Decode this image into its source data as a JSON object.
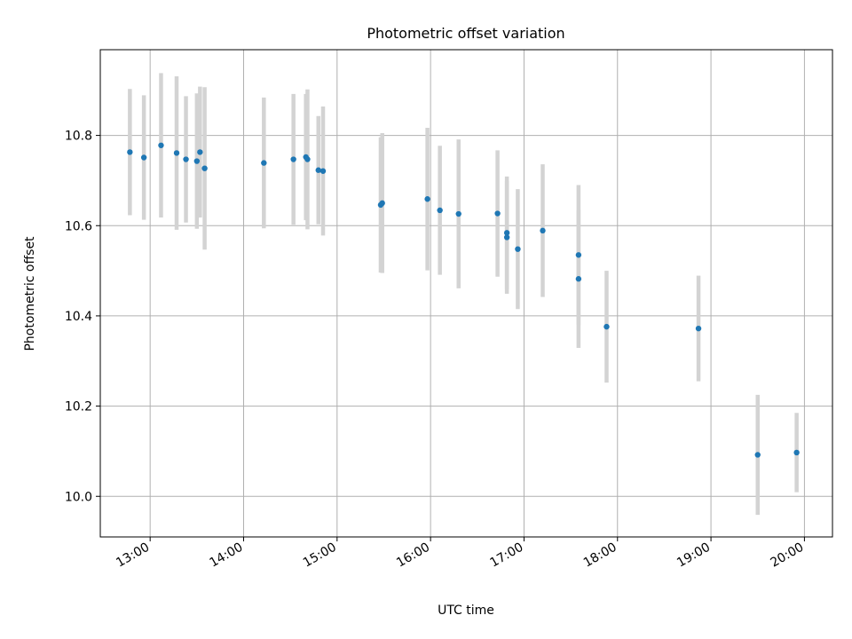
{
  "chart_data": {
    "type": "scatter",
    "title": "Photometric offset variation",
    "xlabel": "UTC time",
    "ylabel": "Photometric offset",
    "xlim": [
      "12:28",
      "20:18"
    ],
    "ylim": [
      9.91,
      10.99
    ],
    "x_ticks": [
      "13:00",
      "14:00",
      "15:00",
      "16:00",
      "17:00",
      "18:00",
      "19:00",
      "20:00"
    ],
    "y_ticks": [
      "10.0",
      "10.2",
      "10.4",
      "10.6",
      "10.8"
    ],
    "grid": true,
    "colors": {
      "point": "#1f77b4",
      "errorbar": "#d3d3d3",
      "grid": "#b0b0b0"
    },
    "series": [
      {
        "points": [
          {
            "x": "12:47",
            "y": 10.763,
            "yerr": 0.14
          },
          {
            "x": "12:56",
            "y": 10.751,
            "yerr": 0.138
          },
          {
            "x": "13:07",
            "y": 10.778,
            "yerr": 0.16
          },
          {
            "x": "13:17",
            "y": 10.761,
            "yerr": 0.17
          },
          {
            "x": "13:23",
            "y": 10.747,
            "yerr": 0.14
          },
          {
            "x": "13:30",
            "y": 10.743,
            "yerr": 0.15
          },
          {
            "x": "13:32",
            "y": 10.763,
            "yerr": 0.145
          },
          {
            "x": "13:35",
            "y": 10.727,
            "yerr": 0.18
          },
          {
            "x": "14:13",
            "y": 10.739,
            "yerr": 0.145
          },
          {
            "x": "14:32",
            "y": 10.747,
            "yerr": 0.145
          },
          {
            "x": "14:40",
            "y": 10.752,
            "yerr": 0.14
          },
          {
            "x": "14:41",
            "y": 10.747,
            "yerr": 0.155
          },
          {
            "x": "14:48",
            "y": 10.723,
            "yerr": 0.12
          },
          {
            "x": "14:51",
            "y": 10.721,
            "yerr": 0.143
          },
          {
            "x": "15:28",
            "y": 10.646,
            "yerr": 0.15
          },
          {
            "x": "15:29",
            "y": 10.65,
            "yerr": 0.155
          },
          {
            "x": "15:58",
            "y": 10.659,
            "yerr": 0.158
          },
          {
            "x": "16:06",
            "y": 10.634,
            "yerr": 0.143
          },
          {
            "x": "16:18",
            "y": 10.626,
            "yerr": 0.165
          },
          {
            "x": "16:43",
            "y": 10.627,
            "yerr": 0.14
          },
          {
            "x": "16:49",
            "y": 10.584,
            "yerr": 0.125
          },
          {
            "x": "16:49",
            "y": 10.574,
            "yerr": 0.125
          },
          {
            "x": "16:56",
            "y": 10.548,
            "yerr": 0.133
          },
          {
            "x": "17:12",
            "y": 10.589,
            "yerr": 0.147
          },
          {
            "x": "17:35",
            "y": 10.535,
            "yerr": 0.155
          },
          {
            "x": "17:35",
            "y": 10.482,
            "yerr": 0.153
          },
          {
            "x": "17:53",
            "y": 10.376,
            "yerr": 0.124
          },
          {
            "x": "18:52",
            "y": 10.372,
            "yerr": 0.117
          },
          {
            "x": "19:30",
            "y": 10.092,
            "yerr": 0.133
          },
          {
            "x": "19:55",
            "y": 10.097,
            "yerr": 0.088
          }
        ]
      }
    ]
  }
}
